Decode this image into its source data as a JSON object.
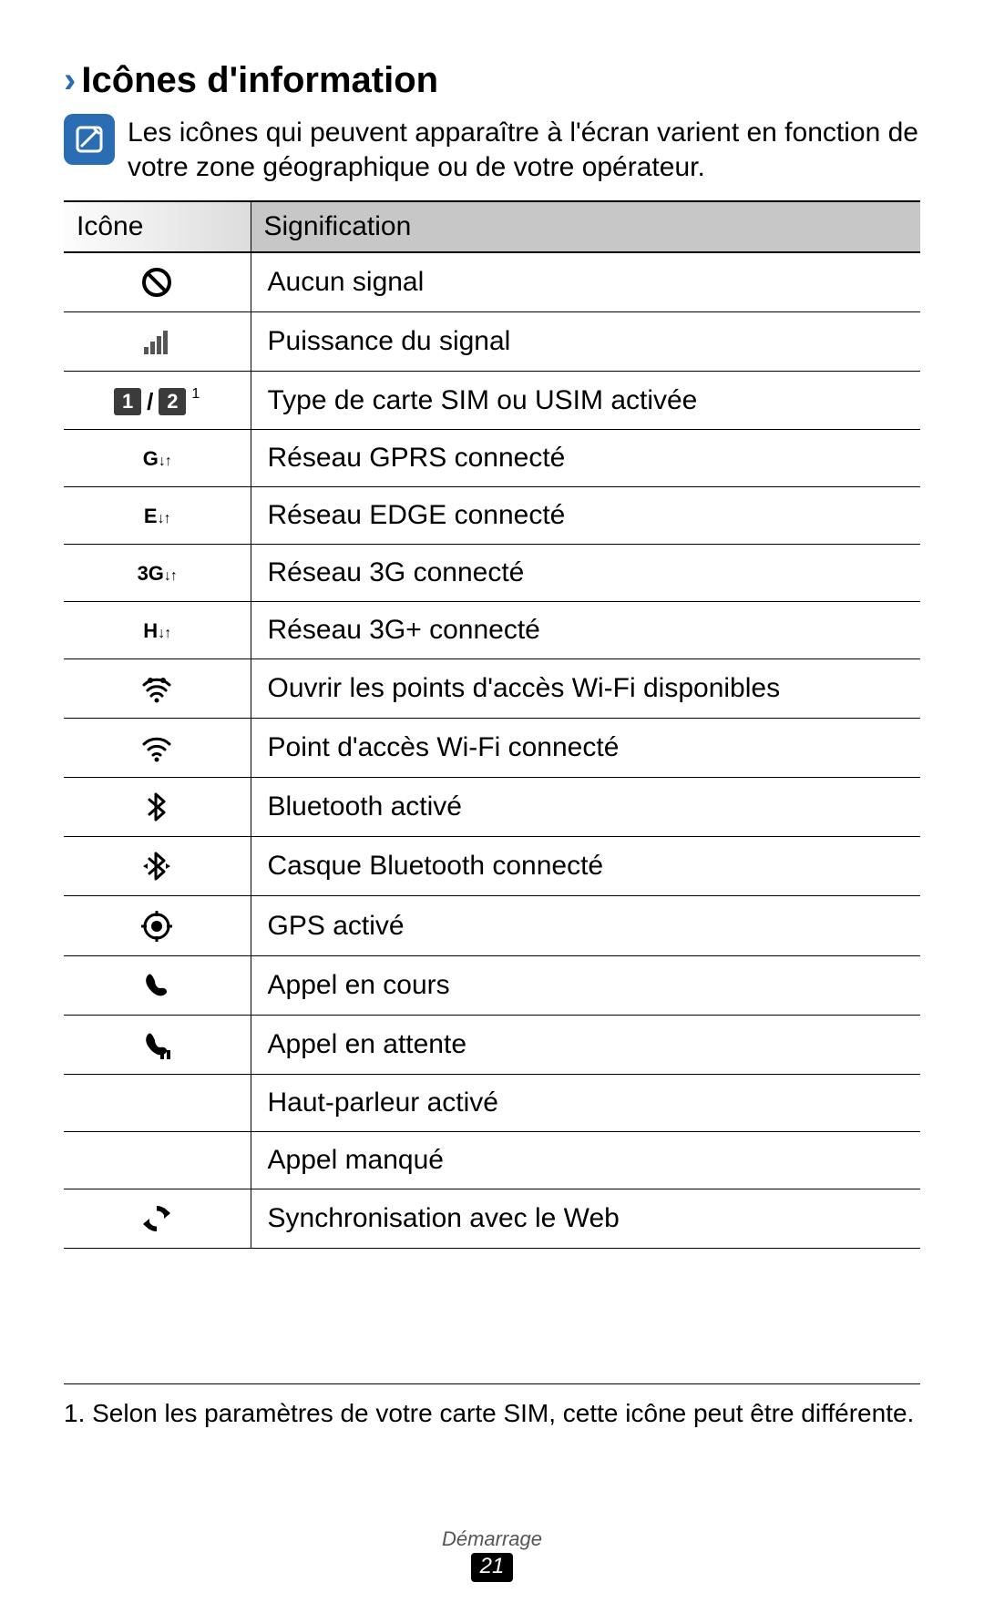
{
  "section": {
    "title": "Icônes d'information",
    "note": "Les icônes qui peuvent apparaître à l'écran varient en fonction de votre zone géographique ou de votre opérateur."
  },
  "table": {
    "header_icon": "Icône",
    "header_meaning": "Signification",
    "rows": [
      {
        "icon": "no-signal",
        "label": "Aucun signal"
      },
      {
        "icon": "signal-bars",
        "label": "Puissance du signal"
      },
      {
        "icon": "sim-1-2",
        "label": "Type de carte SIM ou USIM activée",
        "footnote_ref": "1"
      },
      {
        "icon": "net-gprs",
        "label": "Réseau GPRS connecté"
      },
      {
        "icon": "net-edge",
        "label": "Réseau EDGE connecté"
      },
      {
        "icon": "net-3g",
        "label": "Réseau 3G connecté"
      },
      {
        "icon": "net-h",
        "label": "Réseau 3G+ connecté"
      },
      {
        "icon": "wifi-open",
        "label": "Ouvrir les points d'accès Wi-Fi disponibles"
      },
      {
        "icon": "wifi",
        "label": "Point d'accès Wi-Fi connecté"
      },
      {
        "icon": "bluetooth",
        "label": "Bluetooth activé"
      },
      {
        "icon": "bluetooth-headset",
        "label": "Casque Bluetooth connecté"
      },
      {
        "icon": "gps",
        "label": "GPS activé"
      },
      {
        "icon": "call",
        "label": "Appel en cours"
      },
      {
        "icon": "call-hold",
        "label": "Appel en attente"
      },
      {
        "icon": "speaker",
        "label": "Haut-parleur activé"
      },
      {
        "icon": "missed-call",
        "label": "Appel manqué"
      },
      {
        "icon": "sync",
        "label": "Synchronisation avec le Web"
      }
    ]
  },
  "footnote": "1.  Selon les paramètres de votre carte SIM, cette icône peut être différente.",
  "footer": {
    "section": "Démarrage",
    "page": "21"
  },
  "sim_labels": {
    "a": "1",
    "b": "2",
    "sep": "/"
  },
  "net_labels": {
    "gprs": "G",
    "edge": "E",
    "threeg": "3G",
    "h": "H"
  }
}
